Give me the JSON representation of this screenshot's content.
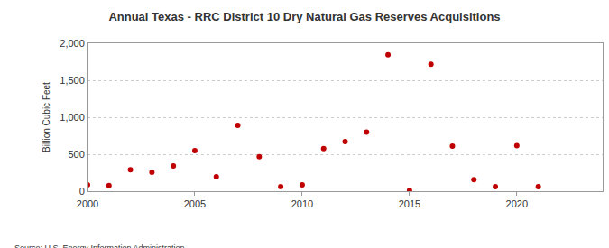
{
  "chart_data": {
    "type": "scatter",
    "title": "Annual Texas - RRC District 10 Dry Natural Gas Reserves Acquisitions",
    "y_label": "Billion Cubic Feet",
    "annotations": [
      "Source: U.S. Energy Information Administration"
    ],
    "x": [
      2000,
      2001,
      2002,
      2003,
      2004,
      2005,
      2006,
      2007,
      2008,
      2009,
      2010,
      2011,
      2012,
      2013,
      2014,
      2015,
      2016,
      2017,
      2018,
      2019,
      2020,
      2021
    ],
    "values": [
      85,
      75,
      290,
      255,
      340,
      550,
      195,
      890,
      465,
      60,
      85,
      575,
      670,
      800,
      1845,
      10,
      1715,
      610,
      155,
      60,
      615,
      60
    ],
    "color": "#c00000",
    "marker": "circle",
    "xlim": [
      2000,
      2024
    ],
    "xticks": [
      2000,
      2005,
      2010,
      2015,
      2020
    ],
    "ylim": [
      0,
      2000
    ],
    "yticks": [
      0,
      500,
      {
        "value": 1000,
        "label": "1,000"
      },
      {
        "value": 1500,
        "label": "1,500"
      },
      {
        "value": 2000,
        "label": "2,000"
      }
    ],
    "grid": true
  }
}
